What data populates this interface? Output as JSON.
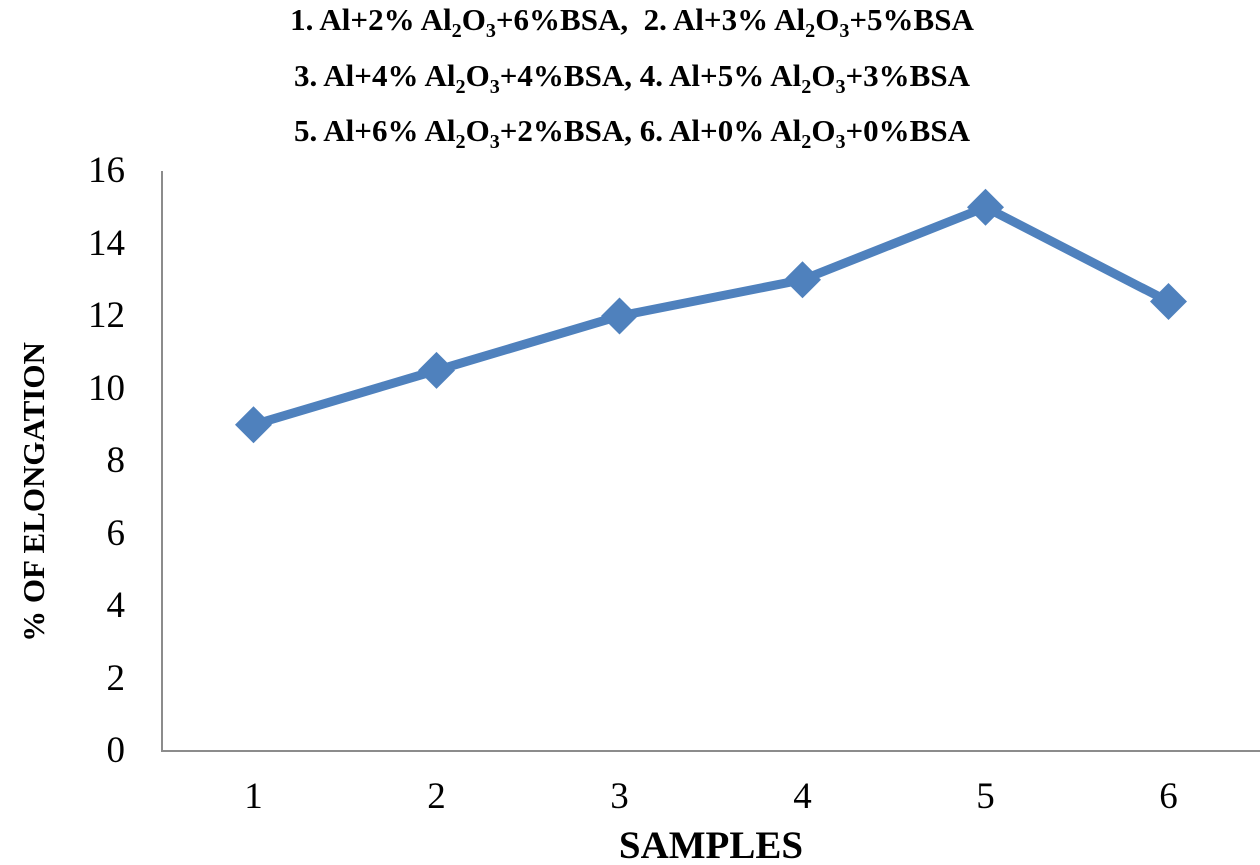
{
  "title": {
    "plain": "1. Al+2% Al2O3+6%BSA,  2. Al+3% Al2O3+5%BSA\n3. Al+4% Al2O3+4%BSA, 4. Al+5% Al2O3+3%BSA\n5. Al+6% Al2O3+2%BSA, 6. Al+0% Al2O3+0%BSA",
    "lines": [
      {
        "segments": [
          {
            "text": "1. Al+2% Al"
          },
          {
            "sub": "2"
          },
          {
            "text": "O"
          },
          {
            "sub": "3"
          },
          {
            "text": "+6%BSA,  2. Al+3% Al"
          },
          {
            "sub": "2"
          },
          {
            "text": "O"
          },
          {
            "sub": "3"
          },
          {
            "text": "+5%BSA"
          }
        ]
      },
      {
        "segments": [
          {
            "text": "3. Al+4% Al"
          },
          {
            "sub": "2"
          },
          {
            "text": "O"
          },
          {
            "sub": "3"
          },
          {
            "text": "+4%BSA, 4. Al+5% Al"
          },
          {
            "sub": "2"
          },
          {
            "text": "O"
          },
          {
            "sub": "3"
          },
          {
            "text": "+3%BSA"
          }
        ]
      },
      {
        "segments": [
          {
            "text": "5. Al+6% Al"
          },
          {
            "sub": "2"
          },
          {
            "text": "O"
          },
          {
            "sub": "3"
          },
          {
            "text": "+2%BSA, 6. Al+0% Al"
          },
          {
            "sub": "2"
          },
          {
            "text": "O"
          },
          {
            "sub": "3"
          },
          {
            "text": "+0%BSA"
          }
        ]
      }
    ]
  },
  "axes": {
    "y_title": "% OF ELONGATION",
    "x_title": "SAMPLES",
    "y_ticks": [
      "0",
      "2",
      "4",
      "6",
      "8",
      "10",
      "12",
      "14",
      "16"
    ],
    "x_ticks": [
      "1",
      "2",
      "3",
      "4",
      "5",
      "6"
    ]
  },
  "chart_data": {
    "type": "line",
    "title": "1. Al+2% Al2O3+6%BSA, 2. Al+3% Al2O3+5%BSA / 3. Al+4% Al2O3+4%BSA, 4. Al+5% Al2O3+3%BSA / 5. Al+6% Al2O3+2%BSA, 6. Al+0% Al2O3+0%BSA",
    "x": [
      1,
      2,
      3,
      4,
      5,
      6
    ],
    "categories": [
      "1",
      "2",
      "3",
      "4",
      "5",
      "6"
    ],
    "series": [
      {
        "name": "% of elongation",
        "values": [
          9,
          10.5,
          12,
          13,
          15,
          12.4
        ]
      }
    ],
    "xlabel": "SAMPLES",
    "ylabel": "% OF ELONGATION",
    "ylim": [
      0,
      16
    ],
    "ytick_step": 2,
    "grid": false,
    "legend": false,
    "marker": "diamond"
  },
  "colors": {
    "series": "#4f81bd",
    "axis": "#8c8c8c",
    "text": "#000000",
    "background": "#ffffff"
  }
}
